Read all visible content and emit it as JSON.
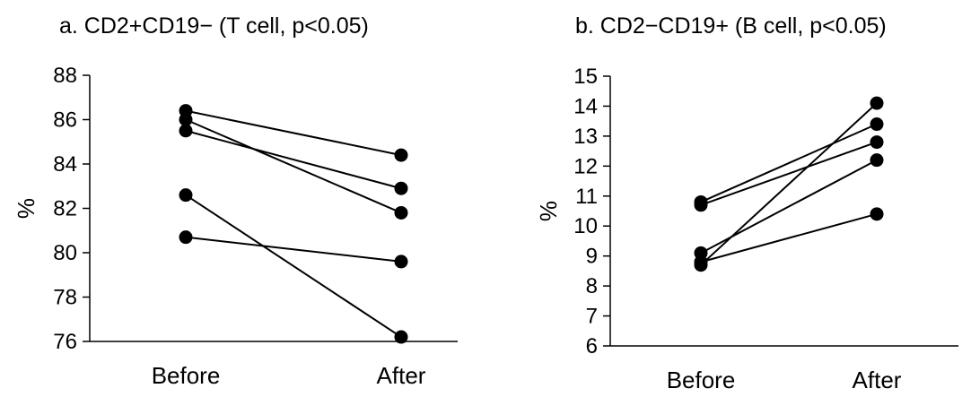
{
  "chart_data": [
    {
      "type": "line",
      "title": "a.  CD2+CD19− (T cell, p<0.05)",
      "ylabel": "%",
      "xlabel": "",
      "categories": [
        "Before",
        "After"
      ],
      "ylim": [
        76,
        88
      ],
      "yticks": [
        76,
        78,
        80,
        82,
        84,
        86,
        88
      ],
      "grid": false,
      "series": [
        {
          "values": [
            86.4,
            84.4
          ]
        },
        {
          "values": [
            86.0,
            81.8
          ]
        },
        {
          "values": [
            85.5,
            82.9
          ]
        },
        {
          "values": [
            82.6,
            76.2
          ]
        },
        {
          "values": [
            80.7,
            79.6
          ]
        }
      ]
    },
    {
      "type": "line",
      "title": "b.  CD2−CD19+ (B cell, p<0.05)",
      "ylabel": "%",
      "xlabel": "",
      "categories": [
        "Before",
        "After"
      ],
      "ylim": [
        6,
        15
      ],
      "yticks": [
        6,
        7,
        8,
        9,
        10,
        11,
        12,
        13,
        14,
        15
      ],
      "grid": false,
      "series": [
        {
          "values": [
            10.8,
            13.4
          ]
        },
        {
          "values": [
            10.7,
            12.8
          ]
        },
        {
          "values": [
            9.1,
            12.2
          ]
        },
        {
          "values": [
            8.8,
            10.4
          ]
        },
        {
          "values": [
            8.7,
            14.1
          ]
        }
      ]
    }
  ]
}
